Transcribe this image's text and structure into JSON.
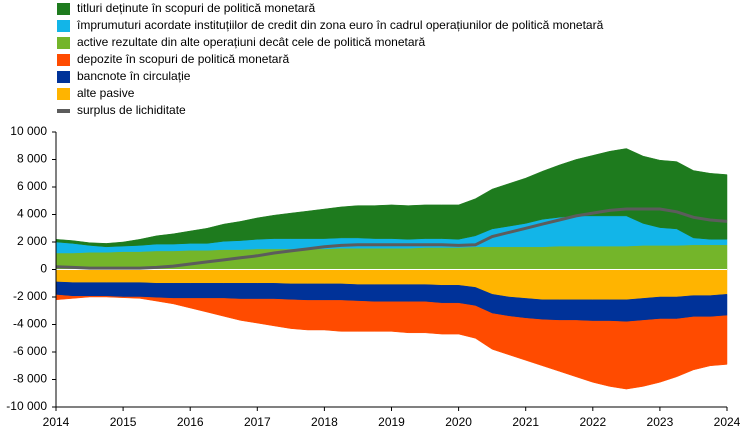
{
  "chart_data": {
    "type": "area",
    "stacked": true,
    "x": [
      2014,
      2014.25,
      2014.5,
      2014.75,
      2015,
      2015.25,
      2015.5,
      2015.75,
      2016,
      2016.25,
      2016.5,
      2016.75,
      2017,
      2017.25,
      2017.5,
      2017.75,
      2018,
      2018.25,
      2018.5,
      2018.75,
      2019,
      2019.25,
      2019.5,
      2019.75,
      2020,
      2020.25,
      2020.5,
      2020.75,
      2021,
      2021.25,
      2021.5,
      2021.75,
      2022,
      2022.25,
      2022.5,
      2022.75,
      2023,
      2023.25,
      2023.5,
      2023.75,
      2024
    ],
    "xlim": [
      2014,
      2024
    ],
    "xticks": [
      2014,
      2015,
      2016,
      2017,
      2018,
      2019,
      2020,
      2021,
      2022,
      2023,
      2024
    ],
    "ylim": [
      -10000,
      10000
    ],
    "yticks": [
      {
        "value": -10000,
        "label": "-10 000"
      },
      {
        "value": -8000,
        "label": "-8 000"
      },
      {
        "value": -6000,
        "label": "-6 000"
      },
      {
        "value": -4000,
        "label": "-4 000"
      },
      {
        "value": -2000,
        "label": "-2 000"
      },
      0,
      {
        "value": 2000,
        "label": "2 000"
      },
      {
        "value": 4000,
        "label": "4 000"
      },
      {
        "value": 6000,
        "label": "6 000"
      },
      {
        "value": 8000,
        "label": "8 000"
      },
      {
        "value": 10000,
        "label": "10 000"
      }
    ],
    "legend": "top-left",
    "series": [
      {
        "name": "titluri deținute în scopuri de politică monetară",
        "color": "#1e7b1e",
        "values": [
          200,
          200,
          200,
          250,
          300,
          450,
          600,
          750,
          900,
          1100,
          1250,
          1400,
          1550,
          1700,
          1850,
          2000,
          2150,
          2250,
          2350,
          2400,
          2450,
          2450,
          2450,
          2450,
          2500,
          2700,
          2900,
          3100,
          3300,
          3500,
          3800,
          4100,
          4400,
          4700,
          4900,
          4900,
          4900,
          4900,
          4900,
          4800,
          4700
        ]
      },
      {
        "name": "împrumuturi acordate instituțiilor de credit din zona euro în cadrul operațiunilor de politică monetară",
        "color": "#12b5e8",
        "values": [
          800,
          700,
          500,
          400,
          400,
          450,
          500,
          500,
          500,
          500,
          600,
          650,
          700,
          750,
          750,
          750,
          750,
          750,
          750,
          700,
          700,
          650,
          650,
          650,
          600,
          800,
          1300,
          1500,
          1700,
          2000,
          2100,
          2200,
          2200,
          2200,
          2200,
          1600,
          1300,
          1200,
          500,
          400,
          400
        ]
      },
      {
        "name": "active rezultate din alte operațiuni decât cele de politică monetară",
        "color": "#74b52a",
        "values": [
          1200,
          1200,
          1250,
          1250,
          1300,
          1300,
          1350,
          1350,
          1400,
          1400,
          1450,
          1450,
          1500,
          1500,
          1500,
          1500,
          1500,
          1550,
          1550,
          1550,
          1550,
          1550,
          1600,
          1600,
          1600,
          1650,
          1650,
          1650,
          1650,
          1650,
          1700,
          1700,
          1700,
          1700,
          1700,
          1750,
          1750,
          1750,
          1800,
          1800,
          1800
        ]
      },
      {
        "name": "depozite în scopuri de politică monetară",
        "color": "#ff4b00",
        "values": [
          -350,
          -150,
          -50,
          -50,
          -50,
          -100,
          -250,
          -400,
          -700,
          -1000,
          -1300,
          -1550,
          -1750,
          -1950,
          -2100,
          -2150,
          -2150,
          -2250,
          -2200,
          -2150,
          -2150,
          -2250,
          -2250,
          -2250,
          -2250,
          -2350,
          -2600,
          -2800,
          -3050,
          -3350,
          -3700,
          -4100,
          -4450,
          -4750,
          -4900,
          -4800,
          -4600,
          -4200,
          -3850,
          -3550,
          -3550
        ]
      },
      {
        "name": "bancnote în circulație",
        "color": "#003299",
        "values": [
          -950,
          -1000,
          -1000,
          -1000,
          -1050,
          -1050,
          -1050,
          -1100,
          -1100,
          -1100,
          -1100,
          -1150,
          -1150,
          -1150,
          -1150,
          -1200,
          -1200,
          -1200,
          -1200,
          -1250,
          -1250,
          -1250,
          -1250,
          -1300,
          -1300,
          -1350,
          -1400,
          -1400,
          -1450,
          -1450,
          -1500,
          -1500,
          -1550,
          -1550,
          -1600,
          -1600,
          -1600,
          -1600,
          -1550,
          -1550,
          -1550
        ]
      },
      {
        "name": "alte pasive",
        "color": "#ffb400",
        "values": [
          -900,
          -950,
          -950,
          -950,
          -950,
          -950,
          -1000,
          -1000,
          -1000,
          -1000,
          -1000,
          -1000,
          -1000,
          -1000,
          -1050,
          -1050,
          -1050,
          -1050,
          -1100,
          -1100,
          -1100,
          -1100,
          -1100,
          -1150,
          -1150,
          -1300,
          -1800,
          -2000,
          -2100,
          -2200,
          -2200,
          -2200,
          -2200,
          -2200,
          -2200,
          -2100,
          -2000,
          -2000,
          -1900,
          -1900,
          -1800
        ]
      },
      {
        "name": "surplus de lichiditate",
        "color": "#5c5c5c",
        "type": "line",
        "values": [
          200,
          150,
          100,
          100,
          100,
          100,
          150,
          250,
          400,
          550,
          700,
          850,
          1000,
          1200,
          1350,
          1500,
          1650,
          1750,
          1800,
          1800,
          1800,
          1800,
          1800,
          1800,
          1750,
          1800,
          2400,
          2700,
          3000,
          3300,
          3600,
          3900,
          4100,
          4300,
          4400,
          4400,
          4400,
          4200,
          3800,
          3600,
          3500
        ]
      }
    ]
  }
}
